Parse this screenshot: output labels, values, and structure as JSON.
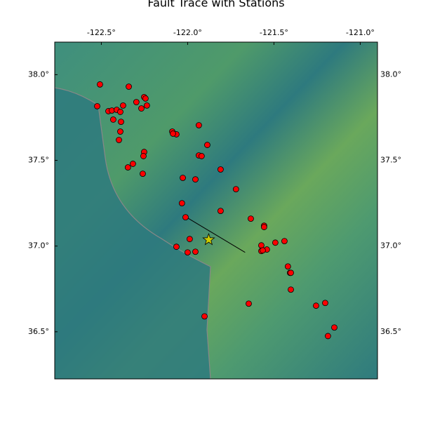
{
  "chart_data": {
    "type": "scatter",
    "title": "Fault Trace with Stations",
    "xlim": [
      -122.77,
      -120.9
    ],
    "ylim": [
      36.225,
      38.19
    ],
    "xticks": [
      {
        "value": -122.5,
        "label": "-122.5°"
      },
      {
        "value": -122.0,
        "label": "-122.0°"
      },
      {
        "value": -121.5,
        "label": "-121.5°"
      },
      {
        "value": -121.0,
        "label": "-121.0°"
      }
    ],
    "yticks": [
      {
        "value": 36.5,
        "label": "36.5°"
      },
      {
        "value": 37.0,
        "label": "37.0°"
      },
      {
        "value": 37.5,
        "label": "37.5°"
      },
      {
        "value": 38.0,
        "label": "38.0°"
      }
    ],
    "stations": {
      "color": "#ff0000",
      "x": [
        -122.508,
        -122.341,
        -122.524,
        -122.252,
        -122.244,
        -122.297,
        -122.374,
        -122.236,
        -122.268,
        -122.459,
        -122.439,
        -122.411,
        -122.39,
        -122.431,
        -122.386,
        -122.39,
        -122.398,
        -122.089,
        -122.065,
        -122.085,
        -121.935,
        -121.886,
        -121.935,
        -121.919,
        -122.252,
        -122.256,
        -122.317,
        -122.346,
        -122.26,
        -121.809,
        -122.028,
        -121.955,
        -121.72,
        -122.033,
        -121.809,
        -122.012,
        -121.634,
        -121.557,
        -121.557,
        -121.988,
        -121.492,
        -121.439,
        -121.573,
        -122.065,
        -122.0,
        -121.955,
        -121.541,
        -121.573,
        -121.565,
        -121.419,
        -121.407,
        -121.402,
        -121.402,
        -121.203,
        -121.256,
        -121.646,
        -121.15,
        -121.187,
        -121.902
      ],
      "y": [
        37.943,
        37.93,
        37.816,
        37.869,
        37.861,
        37.84,
        37.82,
        37.82,
        37.803,
        37.787,
        37.791,
        37.795,
        37.783,
        37.738,
        37.725,
        37.668,
        37.619,
        37.668,
        37.652,
        37.656,
        37.705,
        37.59,
        37.529,
        37.525,
        37.549,
        37.525,
        37.48,
        37.459,
        37.422,
        37.447,
        37.398,
        37.389,
        37.332,
        37.25,
        37.205,
        37.168,
        37.16,
        37.119,
        37.111,
        37.041,
        37.02,
        37.029,
        37.004,
        36.996,
        36.963,
        36.967,
        36.98,
        36.971,
        36.975,
        36.881,
        36.844,
        36.844,
        36.746,
        36.668,
        36.652,
        36.664,
        36.525,
        36.475,
        36.59
      ]
    },
    "fault": {
      "color": "#000000",
      "x": [
        -122.02,
        -121.667
      ],
      "y": [
        37.176,
        36.963
      ]
    },
    "epicenter": {
      "color": "#cccc00",
      "x": -121.878,
      "y": 37.037
    }
  }
}
